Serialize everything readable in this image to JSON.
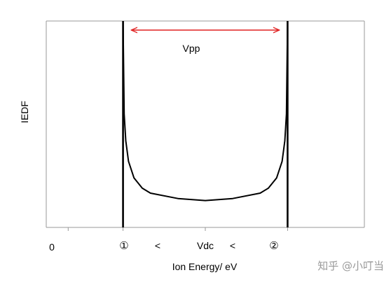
{
  "chart_data": {
    "type": "line",
    "xlabel": "Ion Energy/ eV",
    "ylabel": "IEDF",
    "grid": false,
    "legend": "none",
    "x_tick_labels": [
      "0",
      "①",
      "<",
      "Vdc",
      "<",
      "②"
    ],
    "series": [
      {
        "color": "#000000",
        "shape": "bimodal U",
        "x": [
          1.0,
          1.02,
          1.05,
          1.1,
          1.2,
          1.35,
          1.5,
          2.0,
          2.5,
          3.0,
          3.5,
          3.65,
          3.8,
          3.9,
          3.95,
          3.98,
          4.0
        ],
        "y": [
          1.0,
          0.55,
          0.42,
          0.32,
          0.24,
          0.19,
          0.166,
          0.14,
          0.13,
          0.14,
          0.166,
          0.19,
          0.24,
          0.32,
          0.42,
          0.55,
          1.0
        ]
      }
    ],
    "xlim": [
      -0.4,
      5.4
    ],
    "ylim": [
      0,
      1
    ],
    "annotations": [
      {
        "text": "Vpp",
        "from_x": 1.15,
        "to_x": 3.85,
        "color": "#e02020"
      }
    ]
  },
  "watermark": "知乎 @小叮当"
}
